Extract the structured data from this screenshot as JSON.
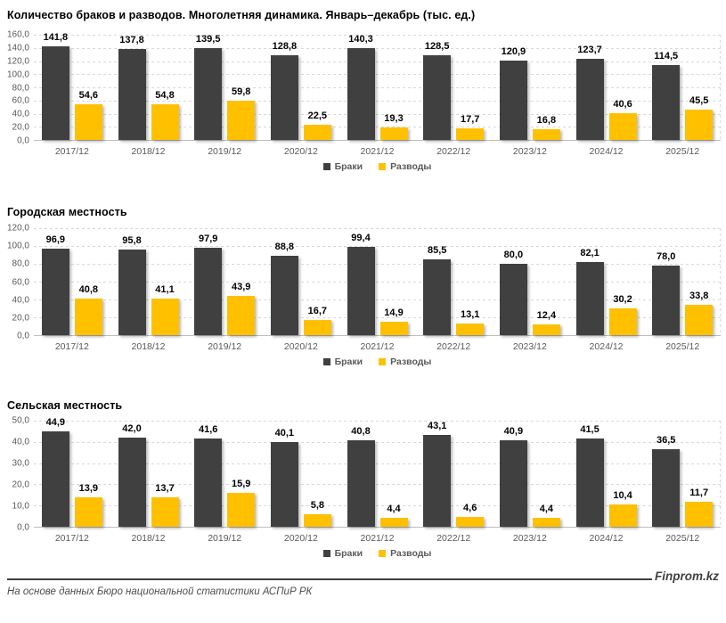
{
  "colors": {
    "marriages_bar": "#404040",
    "divorces_bar": "#FFC000",
    "gridline": "#D9D9D9",
    "axis_text": "#595959",
    "footer_rule": "#404040"
  },
  "footer": {
    "source": "На основе данных Бюро национальной статистики АСПиР РК",
    "brand": "Finprom.kz"
  },
  "chart_data": [
    {
      "type": "bar",
      "title": "Количество браков и разводов. Многолетняя динамика. Январь–декабрь (тыс. ед.)",
      "categories": [
        "2017/12",
        "2018/12",
        "2019/12",
        "2020/12",
        "2021/12",
        "2022/12",
        "2023/12",
        "2024/12",
        "2025/12"
      ],
      "series": [
        {
          "name": "Браки",
          "color": "#404040",
          "values": [
            141.8,
            137.8,
            139.5,
            128.8,
            140.3,
            128.5,
            120.9,
            123.7,
            114.5
          ]
        },
        {
          "name": "Разводы",
          "color": "#FFC000",
          "values": [
            54.6,
            54.8,
            59.8,
            22.5,
            19.3,
            17.7,
            16.8,
            40.6,
            45.5
          ]
        }
      ],
      "xlabel": "",
      "ylabel": "",
      "ylim": [
        0,
        160
      ],
      "ytick_step": 20,
      "grid": true,
      "legend_position": "bottom"
    },
    {
      "type": "bar",
      "title": "Городская местность",
      "categories": [
        "2017/12",
        "2018/12",
        "2019/12",
        "2020/12",
        "2021/12",
        "2022/12",
        "2023/12",
        "2024/12",
        "2025/12"
      ],
      "series": [
        {
          "name": "Браки",
          "color": "#404040",
          "values": [
            96.9,
            95.8,
            97.9,
            88.8,
            99.4,
            85.5,
            80.0,
            82.1,
            78.0
          ]
        },
        {
          "name": "Разводы",
          "color": "#FFC000",
          "values": [
            40.8,
            41.1,
            43.9,
            16.7,
            14.9,
            13.1,
            12.4,
            30.2,
            33.8
          ]
        }
      ],
      "xlabel": "",
      "ylabel": "",
      "ylim": [
        0,
        120
      ],
      "ytick_step": 20,
      "grid": true,
      "legend_position": "bottom"
    },
    {
      "type": "bar",
      "title": "Сельская местность",
      "categories": [
        "2017/12",
        "2018/12",
        "2019/12",
        "2020/12",
        "2021/12",
        "2022/12",
        "2023/12",
        "2024/12",
        "2025/12"
      ],
      "series": [
        {
          "name": "Браки",
          "color": "#404040",
          "values": [
            44.9,
            42.0,
            41.6,
            40.1,
            40.8,
            43.1,
            40.9,
            41.5,
            36.5
          ]
        },
        {
          "name": "Разводы",
          "color": "#FFC000",
          "values": [
            13.9,
            13.7,
            15.9,
            5.8,
            4.4,
            4.6,
            4.4,
            10.4,
            11.7
          ]
        }
      ],
      "xlabel": "",
      "ylabel": "",
      "ylim": [
        0,
        50
      ],
      "ytick_step": 10,
      "grid": true,
      "legend_position": "bottom"
    }
  ]
}
